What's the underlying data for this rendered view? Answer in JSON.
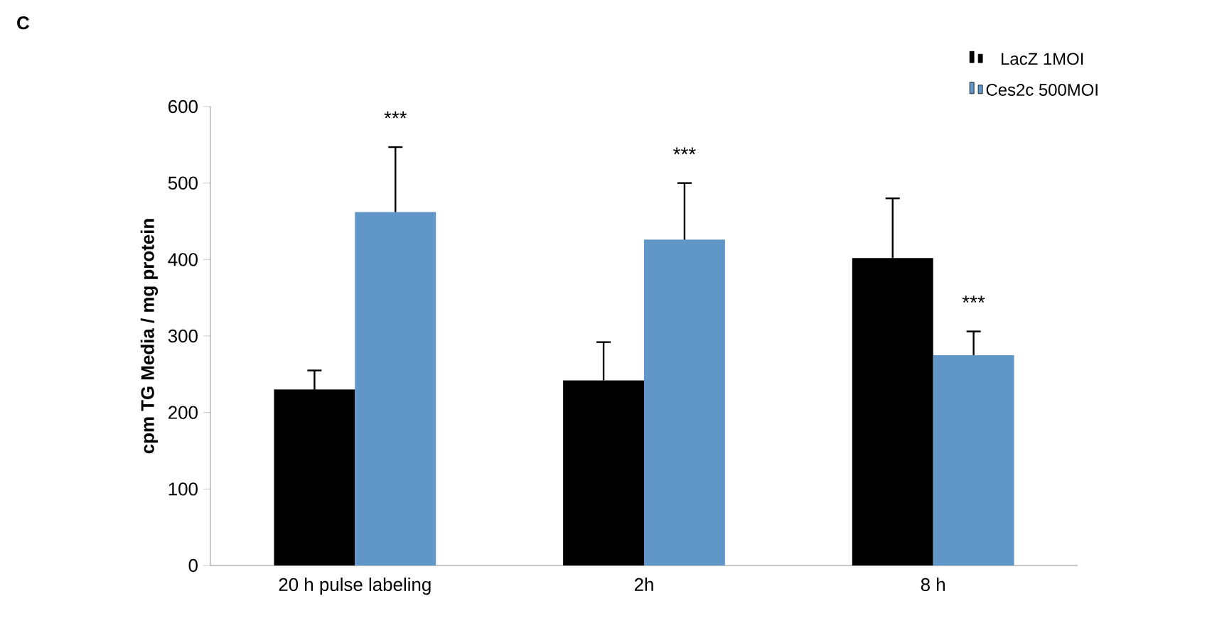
{
  "chart_data": {
    "type": "bar",
    "categories": [
      "20 h pulse labeling",
      "2h",
      "8 h"
    ],
    "series": [
      {
        "name": "LacZ 1MOI",
        "color": "#000000",
        "values": [
          230,
          242,
          402
        ],
        "errors": [
          [
            230,
            255
          ],
          [
            242,
            292
          ],
          [
            402,
            480
          ]
        ]
      },
      {
        "name": "Ces2c 500MOI",
        "color": "#6096c8",
        "values": [
          462,
          426,
          275
        ],
        "errors": [
          [
            462,
            547
          ],
          [
            426,
            500
          ],
          [
            275,
            306
          ]
        ]
      }
    ],
    "ylabel": "cpm TG Media / mg protein",
    "ylim": [
      0,
      600
    ],
    "yticks": [
      0,
      100,
      200,
      300,
      400,
      500,
      600
    ],
    "annotations": [
      "C",
      "***",
      "***",
      "***"
    ],
    "grid": false,
    "legend": "top right"
  }
}
